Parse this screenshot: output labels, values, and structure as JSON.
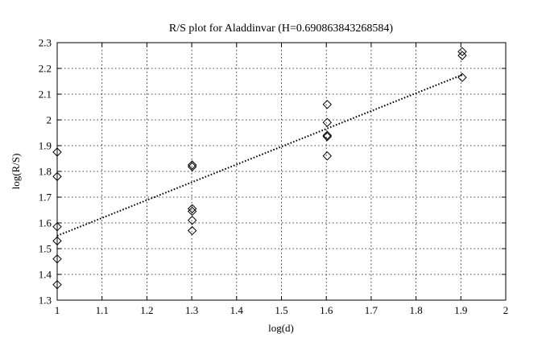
{
  "chart_data": {
    "type": "scatter",
    "title": "R/S plot for Aladdinvar (H=0.690863843268584)",
    "xlabel": "log(d)",
    "ylabel": "log(R/S)",
    "xlim": [
      1,
      2
    ],
    "ylim": [
      1.3,
      2.3
    ],
    "xticks": [
      "1",
      "1.1",
      "1.2",
      "1.3",
      "1.4",
      "1.5",
      "1.6",
      "1.7",
      "1.8",
      "1.9",
      "2"
    ],
    "yticks": [
      "1.3",
      "1.4",
      "1.5",
      "1.6",
      "1.7",
      "1.8",
      "1.9",
      "2",
      "2.1",
      "2.2",
      "2.3"
    ],
    "grid": true,
    "series": [
      {
        "marker": "diamond",
        "points": [
          [
            1.0,
            1.875
          ],
          [
            1.0,
            1.78
          ],
          [
            1.0,
            1.585
          ],
          [
            1.0,
            1.53
          ],
          [
            1.0,
            1.46
          ],
          [
            1.0,
            1.36
          ],
          [
            1.301,
            1.825
          ],
          [
            1.301,
            1.818
          ],
          [
            1.301,
            1.655
          ],
          [
            1.301,
            1.645
          ],
          [
            1.301,
            1.61
          ],
          [
            1.301,
            1.57
          ],
          [
            1.602,
            2.06
          ],
          [
            1.602,
            1.99
          ],
          [
            1.602,
            1.94
          ],
          [
            1.602,
            1.935
          ],
          [
            1.602,
            1.86
          ],
          [
            1.903,
            2.265
          ],
          [
            1.903,
            2.25
          ],
          [
            1.903,
            2.165
          ]
        ]
      },
      {
        "type": "line",
        "style": "dotted",
        "points": [
          [
            1.0,
            1.55
          ],
          [
            1.903,
            2.175
          ]
        ]
      }
    ]
  }
}
